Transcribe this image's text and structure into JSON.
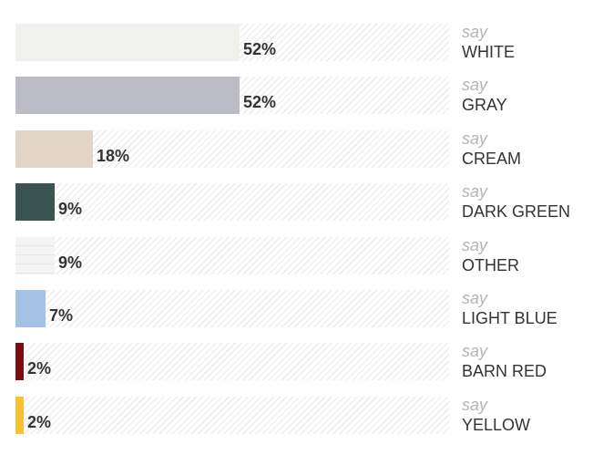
{
  "chart_data": {
    "type": "bar",
    "orientation": "horizontal",
    "title": "",
    "xlabel": "",
    "ylabel": "",
    "xlim": [
      0,
      100
    ],
    "categories": [
      "WHITE",
      "GRAY",
      "CREAM",
      "DARK GREEN",
      "OTHER",
      "LIGHT BLUE",
      "BARN RED",
      "YELLOW"
    ],
    "values": [
      52,
      52,
      18,
      9,
      9,
      7,
      2,
      2
    ],
    "value_labels": [
      "52%",
      "52%",
      "18%",
      "9%",
      "9%",
      "7%",
      "2%",
      "2%"
    ],
    "label_prefix": "say",
    "colors": [
      "#f0f0ec",
      "#bcbcc6",
      "#e2d5c6",
      "#395451",
      "#f2f2f2",
      "#a4c2e6",
      "#7a0f0f",
      "#f7c232"
    ],
    "grid": false,
    "legend": "none"
  },
  "rows": [
    {
      "say": "say",
      "name": "WHITE",
      "pct": "52%",
      "value": 52,
      "color": "#f0f0ec"
    },
    {
      "say": "say",
      "name": "GRAY",
      "pct": "52%",
      "value": 52,
      "color": "#bcbcc6"
    },
    {
      "say": "say",
      "name": "CREAM",
      "pct": "18%",
      "value": 18,
      "color": "#e2d5c6"
    },
    {
      "say": "say",
      "name": "DARK GREEN",
      "pct": "9%",
      "value": 9,
      "color": "#395451"
    },
    {
      "say": "say",
      "name": "OTHER",
      "pct": "9%",
      "value": 9,
      "color": "#f2f2f2"
    },
    {
      "say": "say",
      "name": "LIGHT BLUE",
      "pct": "7%",
      "value": 7,
      "color": "#a4c2e6"
    },
    {
      "say": "say",
      "name": "BARN RED",
      "pct": "2%",
      "value": 2,
      "color": "#7a0f0f"
    },
    {
      "say": "say",
      "name": "YELLOW",
      "pct": "2%",
      "value": 2,
      "color": "#f7c232"
    }
  ]
}
